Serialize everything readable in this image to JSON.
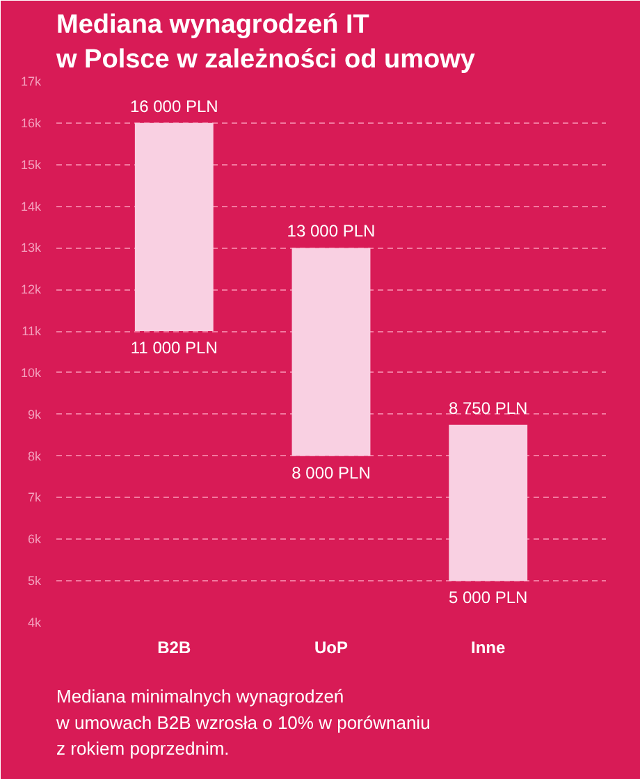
{
  "chart_data": {
    "type": "bar",
    "title": "Mediana wynagrodzeń IT\nw Polsce w zależności od umowy",
    "categories": [
      "B2B",
      "UoP",
      "Inne"
    ],
    "base": [
      11000,
      8000,
      5000
    ],
    "values": [
      5000,
      5000,
      3750
    ],
    "color": "#f9d0e2",
    "ylim": [
      4000,
      17000
    ],
    "yticks": [
      {
        "value": 4000,
        "label": "4k"
      },
      {
        "value": 5000,
        "label": "5k"
      },
      {
        "value": 6000,
        "label": "6k"
      },
      {
        "value": 7000,
        "label": "7k"
      },
      {
        "value": 8000,
        "label": "8k"
      },
      {
        "value": 9000,
        "label": "9k"
      },
      {
        "value": 10000,
        "label": "10k"
      },
      {
        "value": 11000,
        "label": "11k"
      },
      {
        "value": 12000,
        "label": "12k"
      },
      {
        "value": 13000,
        "label": "13k"
      },
      {
        "value": 14000,
        "label": "14k"
      },
      {
        "value": 15000,
        "label": "15k"
      },
      {
        "value": 16000,
        "label": "16k"
      },
      {
        "value": 17000,
        "label": "17k"
      }
    ],
    "grid": "y",
    "annotations": [
      {
        "text": "16 000 PLN",
        "x": "B2B",
        "y": 16000
      },
      {
        "text": "11 000 PLN",
        "x": "B2B",
        "y": 11000
      },
      {
        "text": "13 000 PLN",
        "x": "UoP",
        "y": 13000
      },
      {
        "text": "8 000 PLN",
        "x": "UoP",
        "y": 8000
      },
      {
        "text": "8 750 PLN",
        "x": "Inne",
        "y": 8750
      },
      {
        "text": "5 000 PLN",
        "x": "Inne",
        "y": 5000
      },
      "Mediana minimalnych wynagrodzeń\nw umowach B2B wzrosła o 10% w porównaniu\nz rokiem poprzednim."
    ]
  }
}
